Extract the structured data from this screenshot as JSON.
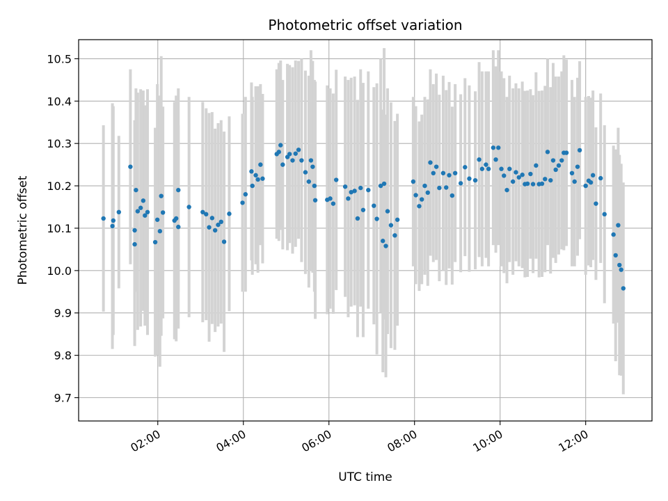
{
  "chart_data": {
    "type": "scatter",
    "title": "Photometric offset variation",
    "xlabel": "UTC time",
    "ylabel": "Photometric offset",
    "x_unit": "hours (UTC)",
    "xlim": [
      0.15,
      13.55
    ],
    "ylim": [
      9.645,
      10.545
    ],
    "x_ticks": [
      2,
      4,
      6,
      8,
      10,
      12
    ],
    "x_tick_labels": [
      "02:00",
      "04:00",
      "06:00",
      "08:00",
      "10:00",
      "12:00"
    ],
    "y_ticks": [
      9.7,
      9.8,
      9.9,
      10.0,
      10.1,
      10.2,
      10.3,
      10.4,
      10.5
    ],
    "y_tick_labels": [
      "9.7",
      "9.8",
      "9.9",
      "10.0",
      "10.1",
      "10.2",
      "10.3",
      "10.4",
      "10.5"
    ],
    "grid": true,
    "point_color": "#1f77b4",
    "errorbar_color": "#d3d3d3",
    "series": [
      {
        "values": [
          [
            0.73,
            10.123,
            0.22
          ],
          [
            0.94,
            10.105,
            0.29
          ],
          [
            0.96,
            10.118,
            0.27
          ],
          [
            1.09,
            10.138,
            0.18
          ],
          [
            1.36,
            10.245,
            0.23
          ],
          [
            1.46,
            10.062,
            0.24
          ],
          [
            1.46,
            10.095,
            0.26
          ],
          [
            1.49,
            10.19,
            0.24
          ],
          [
            1.53,
            10.14,
            0.28
          ],
          [
            1.6,
            10.148,
            0.28
          ],
          [
            1.66,
            10.165,
            0.26
          ],
          [
            1.7,
            10.13,
            0.26
          ],
          [
            1.76,
            10.138,
            0.29
          ],
          [
            1.94,
            10.067,
            0.27
          ],
          [
            1.99,
            10.12,
            0.32
          ],
          [
            2.05,
            10.093,
            0.32
          ],
          [
            2.08,
            10.176,
            0.33
          ],
          [
            2.12,
            10.137,
            0.25
          ],
          [
            2.39,
            10.118,
            0.28
          ],
          [
            2.43,
            10.123,
            0.29
          ],
          [
            2.48,
            10.103,
            0.24
          ],
          [
            2.48,
            10.19,
            0.24
          ],
          [
            2.73,
            10.15,
            0.26
          ],
          [
            3.05,
            10.138,
            0.26
          ],
          [
            3.13,
            10.133,
            0.25
          ],
          [
            3.2,
            10.102,
            0.27
          ],
          [
            3.27,
            10.124,
            0.25
          ],
          [
            3.34,
            10.095,
            0.24
          ],
          [
            3.41,
            10.108,
            0.24
          ],
          [
            3.48,
            10.115,
            0.24
          ],
          [
            3.55,
            10.068,
            0.26
          ],
          [
            3.67,
            10.134,
            0.23
          ],
          [
            3.98,
            10.16,
            0.21
          ],
          [
            4.05,
            10.18,
            0.23
          ],
          [
            4.19,
            10.234,
            0.21
          ],
          [
            4.21,
            10.2,
            0.21
          ],
          [
            4.29,
            10.225,
            0.21
          ],
          [
            4.34,
            10.215,
            0.22
          ],
          [
            4.4,
            10.25,
            0.19
          ],
          [
            4.45,
            10.217,
            0.2
          ],
          [
            4.78,
            10.275,
            0.2
          ],
          [
            4.83,
            10.28,
            0.21
          ],
          [
            4.87,
            10.296,
            0.2
          ],
          [
            4.92,
            10.25,
            0.2
          ],
          [
            5.03,
            10.268,
            0.22
          ],
          [
            5.08,
            10.275,
            0.21
          ],
          [
            5.15,
            10.26,
            0.22
          ],
          [
            5.22,
            10.276,
            0.22
          ],
          [
            5.29,
            10.285,
            0.21
          ],
          [
            5.36,
            10.26,
            0.24
          ],
          [
            5.45,
            10.232,
            0.24
          ],
          [
            5.53,
            10.21,
            0.25
          ],
          [
            5.58,
            10.26,
            0.26
          ],
          [
            5.62,
            10.245,
            0.25
          ],
          [
            5.66,
            10.2,
            0.25
          ],
          [
            5.68,
            10.166,
            0.28
          ],
          [
            5.96,
            10.167,
            0.27
          ],
          [
            6.03,
            10.17,
            0.26
          ],
          [
            6.1,
            10.158,
            0.26
          ],
          [
            6.17,
            10.214,
            0.26
          ],
          [
            6.38,
            10.198,
            0.26
          ],
          [
            6.45,
            10.17,
            0.28
          ],
          [
            6.52,
            10.185,
            0.27
          ],
          [
            6.6,
            10.188,
            0.27
          ],
          [
            6.67,
            10.123,
            0.28
          ],
          [
            6.74,
            10.195,
            0.28
          ],
          [
            6.8,
            10.143,
            0.3
          ],
          [
            6.92,
            10.19,
            0.28
          ],
          [
            7.05,
            10.153,
            0.28
          ],
          [
            7.12,
            10.122,
            0.32
          ],
          [
            7.21,
            10.2,
            0.3
          ],
          [
            7.26,
            10.07,
            0.31
          ],
          [
            7.29,
            10.205,
            0.32
          ],
          [
            7.33,
            10.058,
            0.31
          ],
          [
            7.37,
            10.14,
            0.29
          ],
          [
            7.45,
            10.107,
            0.29
          ],
          [
            7.54,
            10.083,
            0.27
          ],
          [
            7.6,
            10.12,
            0.25
          ],
          [
            7.97,
            10.21,
            0.2
          ],
          [
            8.03,
            10.178,
            0.21
          ],
          [
            8.11,
            10.152,
            0.2
          ],
          [
            8.17,
            10.168,
            0.2
          ],
          [
            8.24,
            10.2,
            0.21
          ],
          [
            8.31,
            10.184,
            0.22
          ],
          [
            8.37,
            10.255,
            0.22
          ],
          [
            8.44,
            10.23,
            0.21
          ],
          [
            8.51,
            10.245,
            0.22
          ],
          [
            8.58,
            10.195,
            0.22
          ],
          [
            8.67,
            10.23,
            0.23
          ],
          [
            8.74,
            10.196,
            0.23
          ],
          [
            8.81,
            10.225,
            0.22
          ],
          [
            8.88,
            10.177,
            0.21
          ],
          [
            8.95,
            10.23,
            0.21
          ],
          [
            9.08,
            10.206,
            0.21
          ],
          [
            9.18,
            10.244,
            0.21
          ],
          [
            9.28,
            10.217,
            0.22
          ],
          [
            9.42,
            10.213,
            0.21
          ],
          [
            9.51,
            10.262,
            0.23
          ],
          [
            9.58,
            10.24,
            0.23
          ],
          [
            9.67,
            10.25,
            0.22
          ],
          [
            9.73,
            10.24,
            0.23
          ],
          [
            9.84,
            10.29,
            0.23
          ],
          [
            9.9,
            10.262,
            0.22
          ],
          [
            9.96,
            10.29,
            0.23
          ],
          [
            10.03,
            10.24,
            0.23
          ],
          [
            10.09,
            10.224,
            0.23
          ],
          [
            10.16,
            10.19,
            0.22
          ],
          [
            10.22,
            10.24,
            0.22
          ],
          [
            10.3,
            10.21,
            0.22
          ],
          [
            10.37,
            10.232,
            0.21
          ],
          [
            10.44,
            10.22,
            0.21
          ],
          [
            10.52,
            10.226,
            0.22
          ],
          [
            10.58,
            10.204,
            0.22
          ],
          [
            10.64,
            10.205,
            0.22
          ],
          [
            10.71,
            10.228,
            0.2
          ],
          [
            10.77,
            10.204,
            0.21
          ],
          [
            10.84,
            10.248,
            0.22
          ],
          [
            10.91,
            10.204,
            0.22
          ],
          [
            10.98,
            10.205,
            0.22
          ],
          [
            11.05,
            10.216,
            0.22
          ],
          [
            11.11,
            10.28,
            0.22
          ],
          [
            11.18,
            10.213,
            0.22
          ],
          [
            11.24,
            10.26,
            0.23
          ],
          [
            11.3,
            10.238,
            0.22
          ],
          [
            11.37,
            10.248,
            0.21
          ],
          [
            11.44,
            10.26,
            0.21
          ],
          [
            11.49,
            10.278,
            0.23
          ],
          [
            11.55,
            10.278,
            0.22
          ],
          [
            11.68,
            10.23,
            0.22
          ],
          [
            11.74,
            10.21,
            0.2
          ],
          [
            11.81,
            10.245,
            0.21
          ],
          [
            11.86,
            10.284,
            0.21
          ],
          [
            12.0,
            10.2,
            0.21
          ],
          [
            12.07,
            10.212,
            0.2
          ],
          [
            12.12,
            10.208,
            0.2
          ],
          [
            12.17,
            10.225,
            0.2
          ],
          [
            12.24,
            10.158,
            0.18
          ],
          [
            12.35,
            10.218,
            0.2
          ],
          [
            12.44,
            10.133,
            0.21
          ],
          [
            12.65,
            10.085,
            0.21
          ],
          [
            12.7,
            10.036,
            0.25
          ],
          [
            12.76,
            10.107,
            0.23
          ],
          [
            12.79,
            10.013,
            0.26
          ],
          [
            12.83,
            10.002,
            0.25
          ],
          [
            12.88,
            9.958,
            0.25
          ]
        ]
      }
    ]
  }
}
